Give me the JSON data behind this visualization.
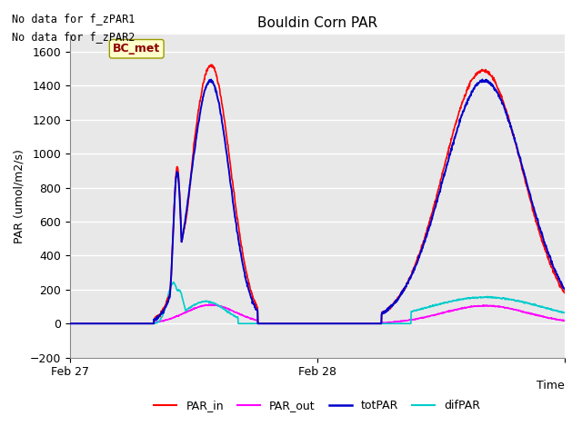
{
  "title": "Bouldin Corn PAR",
  "ylabel": "PAR (umol/m2/s)",
  "xlabel": "Time",
  "annotations": [
    "No data for f_zPAR1",
    "No data for f_zPAR2"
  ],
  "legend_label": "BC_met",
  "ylim": [
    -200,
    1700
  ],
  "yticks": [
    -200,
    0,
    200,
    400,
    600,
    800,
    1000,
    1200,
    1400,
    1600
  ],
  "xtick_labels": [
    "Feb 27",
    "Feb 28",
    ""
  ],
  "xtick_positions": [
    0.0,
    0.5,
    1.0
  ],
  "fig_bg_color": "#ffffff",
  "plot_bg_color": "#e8e8e8",
  "grid_color": "#ffffff",
  "colors": {
    "PAR_in": "#ff0000",
    "PAR_out": "#ff00ff",
    "totPAR": "#0000cc",
    "difPAR": "#00cccc"
  },
  "line_widths": {
    "PAR_in": 1.2,
    "PAR_out": 1.2,
    "totPAR": 1.4,
    "difPAR": 1.2
  }
}
